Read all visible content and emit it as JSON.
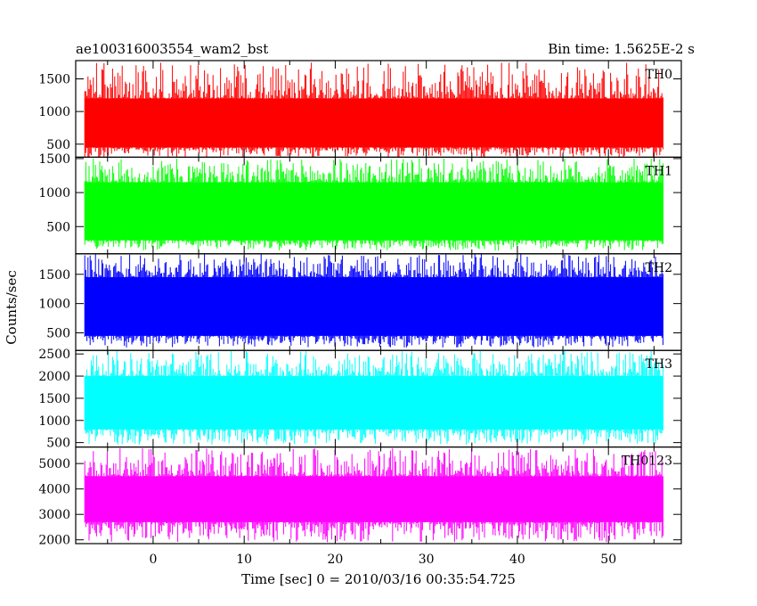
{
  "chart_data": {
    "type": "line",
    "title_left": "ae100316003554_wam2_bst",
    "title_right": "Bin time: 1.5625E-2 s",
    "xlabel": "Time [sec] 0 = 2010/03/16 00:35:54.725",
    "ylabel": "Counts/sec",
    "xlim": [
      -8.5,
      58
    ],
    "xticks": [
      0,
      10,
      20,
      30,
      40,
      50
    ],
    "data_range": [
      -7.5,
      56
    ],
    "bin_time": 0.015625,
    "panels": [
      {
        "name": "TH0",
        "color": "#ff0000",
        "ylim": [
          300,
          1780
        ],
        "yticks": [
          500,
          1000,
          1500
        ],
        "typical_range": [
          450,
          1200
        ],
        "peak_max": 1750,
        "dip_min": 300
      },
      {
        "name": "TH1",
        "color": "#00ff00",
        "ylim": [
          100,
          1520
        ],
        "yticks": [
          500,
          1000,
          1500
        ],
        "typical_range": [
          300,
          1150
        ],
        "peak_max": 1500,
        "dip_min": 150
      },
      {
        "name": "TH2",
        "color": "#0000ff",
        "ylim": [
          200,
          1850
        ],
        "yticks": [
          500,
          1000,
          1500
        ],
        "typical_range": [
          450,
          1450
        ],
        "peak_max": 1850,
        "dip_min": 250
      },
      {
        "name": "TH3",
        "color": "#00ffff",
        "ylim": [
          400,
          2580
        ],
        "yticks": [
          500,
          1000,
          1500,
          2000,
          2500
        ],
        "typical_range": [
          800,
          2000
        ],
        "peak_max": 2580,
        "dip_min": 450
      },
      {
        "name": "TH0123",
        "color": "#ff00ff",
        "ylim": [
          1850,
          5650
        ],
        "yticks": [
          2000,
          3000,
          4000,
          5000
        ],
        "typical_range": [
          2700,
          4500
        ],
        "peak_max": 5600,
        "dip_min": 1900
      }
    ]
  }
}
